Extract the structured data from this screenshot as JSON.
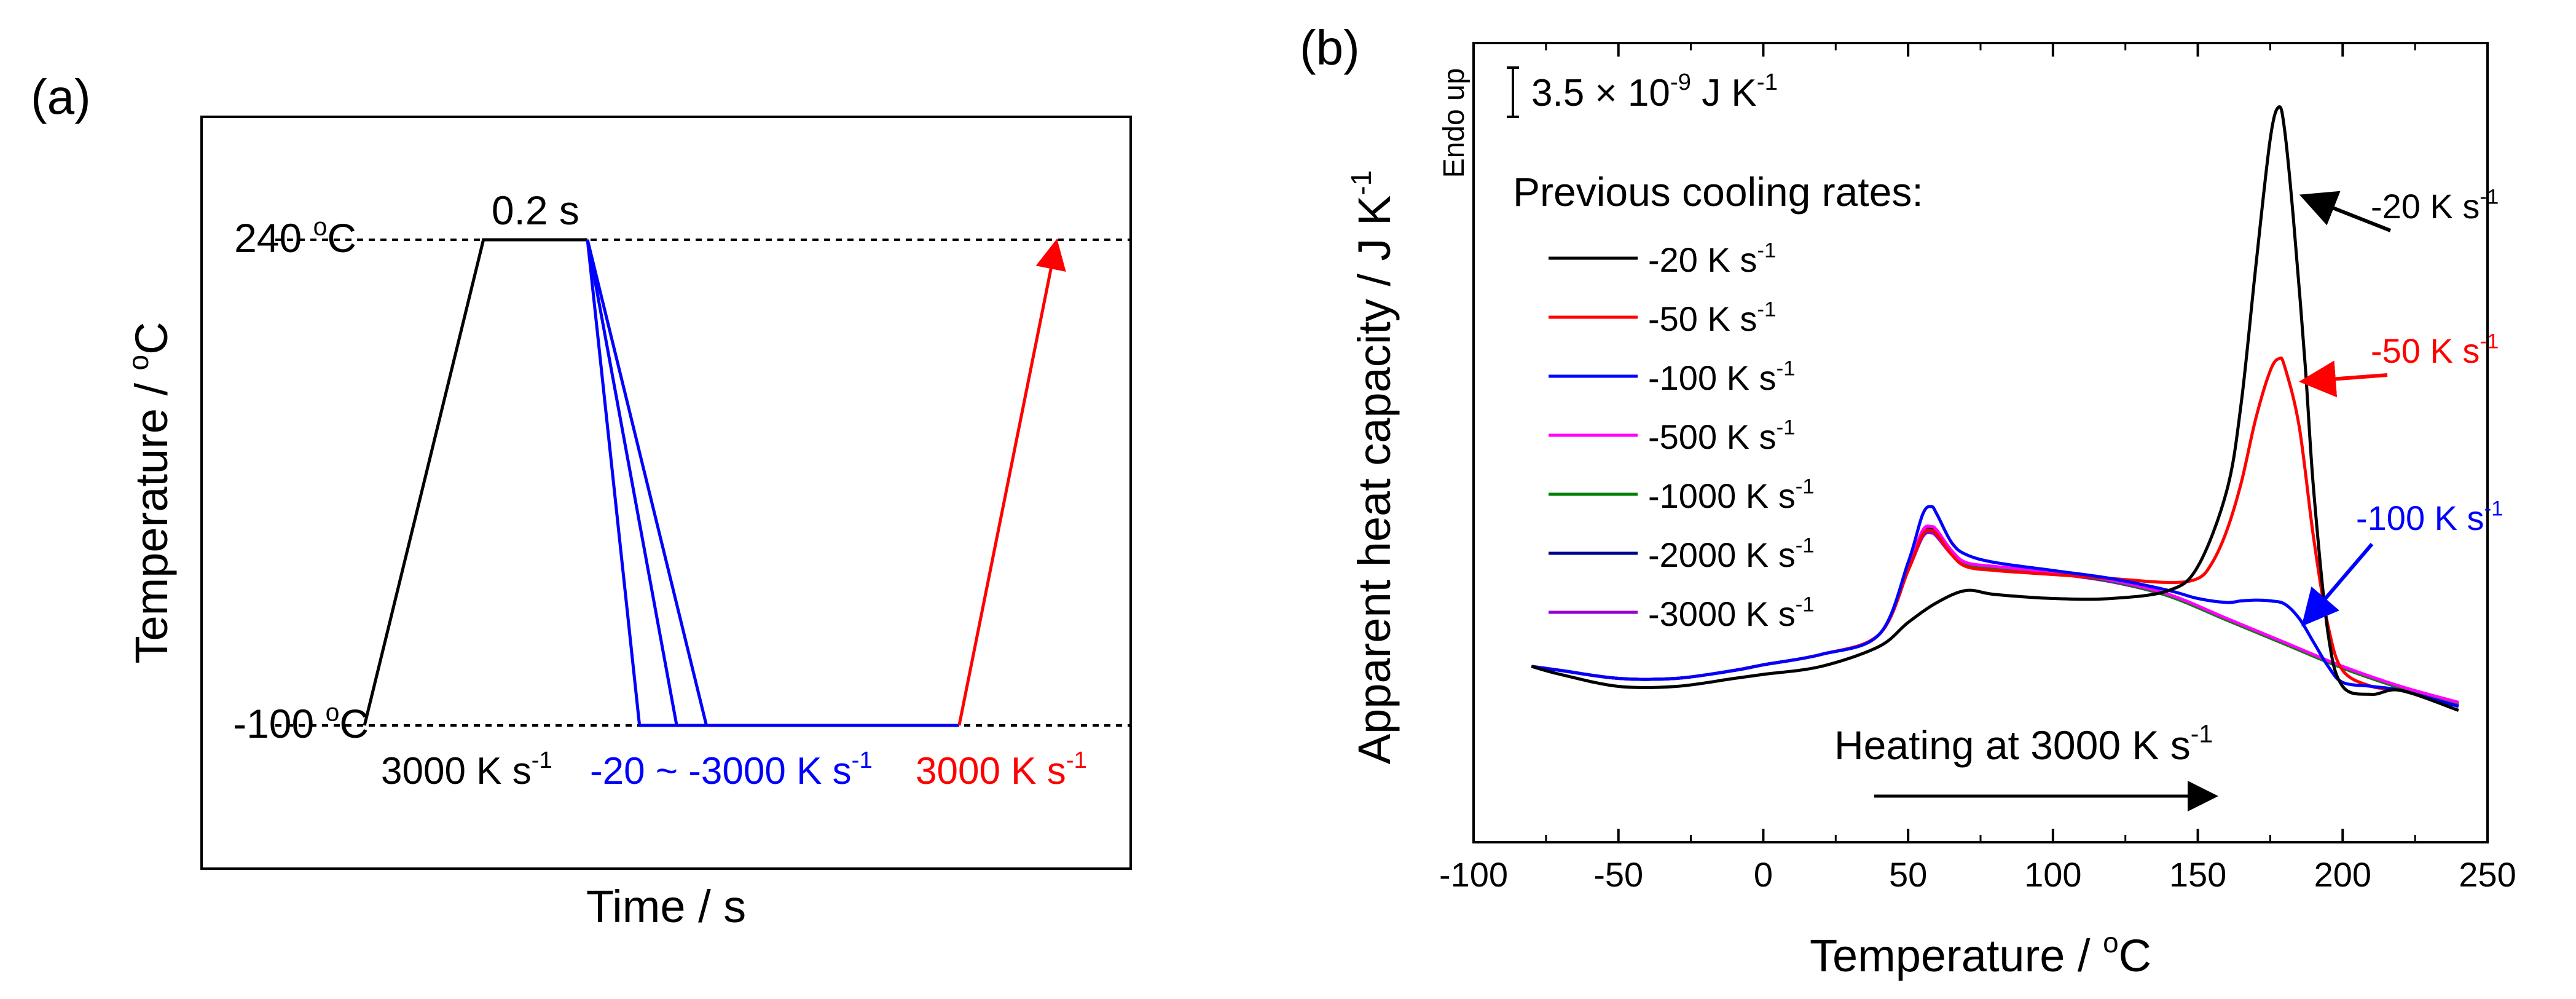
{
  "chart_data": [
    {
      "panel": "(a)",
      "type": "line",
      "title": "",
      "xlabel": "Time / s",
      "ylabel_parts": [
        "Temperature / ",
        "o",
        "C"
      ],
      "levels": [
        {
          "label": "240 °C",
          "value_parts": [
            "240 ",
            "o",
            "C"
          ],
          "temperature": 240
        },
        {
          "label": "-100 °C",
          "value_parts": [
            "-100 ",
            "o",
            "C"
          ],
          "temperature": -100
        }
      ],
      "hold_label": "0.2 s",
      "series": [
        {
          "name": "heating",
          "color": "#000000",
          "points": [
            [
              0.12,
              -100
            ],
            [
              0.28,
              240
            ],
            [
              0.42,
              240
            ]
          ],
          "label_parts": [
            "3000  K s",
            "-1"
          ]
        },
        {
          "name": "cooling",
          "color": "#0000ff",
          "branches": [
            {
              "rate": -20,
              "points": [
                [
                  0.42,
                  240
                ],
                [
                  0.58,
                  -100
                ]
              ]
            },
            {
              "rate": -500,
              "points": [
                [
                  0.42,
                  240
                ],
                [
                  0.54,
                  -100
                ]
              ]
            },
            {
              "rate": -3000,
              "points": [
                [
                  0.42,
                  240
                ],
                [
                  0.49,
                  -100
                ]
              ]
            }
          ],
          "hold_points": [
            [
              0.49,
              -100
            ],
            [
              0.92,
              -100
            ]
          ],
          "label_parts": [
            "-20 ~ -3000 K s",
            "-1"
          ]
        },
        {
          "name": "reheating",
          "color": "#ff0000",
          "points": [
            [
              0.92,
              -100
            ],
            [
              1.05,
              240
            ]
          ],
          "label_parts": [
            "3000  K s",
            "-1"
          ]
        }
      ]
    },
    {
      "panel": "(b)",
      "type": "line",
      "title": "",
      "xlabel_parts": [
        "Temperature / ",
        "o",
        "C"
      ],
      "ylabel_parts": [
        "Apparent heat capacity / J K",
        "-1"
      ],
      "endo_label": "Endo up",
      "scalebar_parts": [
        "3.5 × 10",
        "-9",
        " J K",
        "-1"
      ],
      "scalebar_value": 3.5,
      "xlim": [
        -100,
        250
      ],
      "ylim": [
        0,
        10
      ],
      "xticks": [
        -100,
        -50,
        0,
        50,
        100,
        150,
        200,
        250
      ],
      "legend_title": "Previous cooling rates:",
      "legend_position": "top-left",
      "annotation_heating": "Heating at 3000 K s",
      "annotation_heating_sup": "-1",
      "series": [
        {
          "name": "-20 K s-1",
          "label": "-20 K s",
          "sup": "-1",
          "color": "#000000",
          "x": [
            -80,
            -70,
            -50,
            -30,
            -10,
            0,
            20,
            40,
            50,
            60,
            70,
            80,
            100,
            120,
            140,
            150,
            160,
            165,
            170,
            175,
            178,
            180,
            183,
            187,
            190,
            195,
            200,
            210,
            220,
            240
          ],
          "y": [
            2.2,
            2.1,
            1.95,
            1.95,
            2.05,
            2.1,
            2.2,
            2.45,
            2.75,
            3.0,
            3.15,
            3.1,
            3.05,
            3.05,
            3.15,
            3.45,
            4.4,
            5.5,
            7.2,
            8.8,
            9.2,
            8.9,
            7.8,
            6.0,
            4.4,
            2.6,
            1.95,
            1.85,
            1.9,
            1.65
          ]
        },
        {
          "name": "-50 K s-1",
          "label": "-50 K s",
          "sup": "-1",
          "color": "#ff0000",
          "x": [
            -80,
            -70,
            -50,
            -30,
            -10,
            0,
            20,
            40,
            50,
            55,
            58,
            60,
            65,
            70,
            80,
            100,
            120,
            140,
            150,
            155,
            160,
            165,
            170,
            175,
            178,
            180,
            185,
            190,
            195,
            200,
            210,
            220,
            240
          ],
          "y": [
            2.2,
            2.15,
            2.05,
            2.05,
            2.15,
            2.22,
            2.35,
            2.6,
            3.4,
            3.85,
            3.9,
            3.85,
            3.6,
            3.45,
            3.4,
            3.35,
            3.3,
            3.25,
            3.3,
            3.5,
            3.9,
            4.5,
            5.3,
            5.9,
            6.05,
            5.95,
            5.2,
            3.8,
            2.7,
            2.15,
            1.95,
            1.9,
            1.7
          ]
        },
        {
          "name": "-100 K s-1",
          "label": "-100 K s",
          "sup": "-1",
          "color": "#0000ff",
          "x": [
            -80,
            -70,
            -50,
            -30,
            -10,
            0,
            20,
            40,
            50,
            55,
            58,
            60,
            65,
            70,
            80,
            100,
            120,
            140,
            150,
            160,
            165,
            170,
            175,
            180,
            185,
            190,
            195,
            200,
            210,
            220,
            240
          ],
          "y": [
            2.2,
            2.15,
            2.05,
            2.05,
            2.15,
            2.22,
            2.35,
            2.6,
            3.5,
            4.1,
            4.2,
            4.1,
            3.75,
            3.6,
            3.5,
            3.4,
            3.3,
            3.15,
            3.05,
            3.0,
            3.02,
            3.03,
            3.02,
            2.98,
            2.8,
            2.5,
            2.2,
            2.0,
            1.95,
            1.9,
            1.7
          ]
        },
        {
          "name": "-500 K s-1",
          "label": "-500 K s",
          "sup": "-1",
          "color": "#ff00ff",
          "x": [
            -80,
            -70,
            -50,
            -30,
            -10,
            0,
            20,
            40,
            50,
            55,
            58,
            60,
            65,
            70,
            80,
            100,
            120,
            140,
            160,
            180,
            200,
            220,
            240
          ],
          "y": [
            2.2,
            2.15,
            2.05,
            2.05,
            2.15,
            2.22,
            2.35,
            2.6,
            3.45,
            3.9,
            3.95,
            3.9,
            3.65,
            3.5,
            3.45,
            3.38,
            3.28,
            3.1,
            2.8,
            2.5,
            2.2,
            1.95,
            1.75
          ]
        },
        {
          "name": "-1000 K s-1",
          "label": "-1000 K s",
          "sup": "-1",
          "color": "#008000",
          "x": [
            -80,
            -70,
            -50,
            -30,
            -10,
            0,
            20,
            40,
            50,
            55,
            58,
            60,
            65,
            70,
            80,
            100,
            120,
            140,
            160,
            180,
            200,
            220,
            240
          ],
          "y": [
            2.2,
            2.15,
            2.05,
            2.05,
            2.15,
            2.22,
            2.35,
            2.6,
            3.42,
            3.85,
            3.9,
            3.85,
            3.62,
            3.48,
            3.43,
            3.37,
            3.27,
            3.08,
            2.78,
            2.48,
            2.18,
            1.93,
            1.72
          ]
        },
        {
          "name": "-2000 K s-1",
          "label": "-2000 K s",
          "sup": "-1",
          "color": "#00008b",
          "x": [
            -80,
            -70,
            -50,
            -30,
            -10,
            0,
            20,
            40,
            50,
            55,
            58,
            60,
            65,
            70,
            80,
            100,
            120,
            140,
            160,
            180,
            200,
            220,
            240
          ],
          "y": [
            2.2,
            2.15,
            2.05,
            2.05,
            2.15,
            2.22,
            2.35,
            2.6,
            3.44,
            3.88,
            3.93,
            3.88,
            3.64,
            3.49,
            3.44,
            3.37,
            3.27,
            3.09,
            2.79,
            2.49,
            2.19,
            1.94,
            1.73
          ]
        },
        {
          "name": "-3000 K s-1",
          "label": "-3000 K s",
          "sup": "-1",
          "color": "#9400d3",
          "x": [
            -80,
            -70,
            -50,
            -30,
            -10,
            0,
            20,
            40,
            50,
            55,
            58,
            60,
            65,
            70,
            80,
            100,
            120,
            140,
            160,
            180,
            200,
            220,
            240
          ],
          "y": [
            2.2,
            2.15,
            2.05,
            2.05,
            2.15,
            2.22,
            2.35,
            2.6,
            3.4,
            3.82,
            3.87,
            3.82,
            3.6,
            3.46,
            3.42,
            3.36,
            3.26,
            3.08,
            2.78,
            2.48,
            2.18,
            1.93,
            1.71
          ]
        }
      ],
      "annotations": [
        {
          "label": "-20 K s",
          "sup": "-1",
          "color": "#000000",
          "arrow_to": [
            180,
            8.3
          ]
        },
        {
          "label": "-50 K s",
          "sup": "-1",
          "color": "#ff0000",
          "arrow_to": [
            180,
            6.0
          ]
        },
        {
          "label": "-100 K s",
          "sup": "-1",
          "color": "#0000ff",
          "arrow_to": [
            180,
            3.0
          ]
        }
      ]
    }
  ]
}
